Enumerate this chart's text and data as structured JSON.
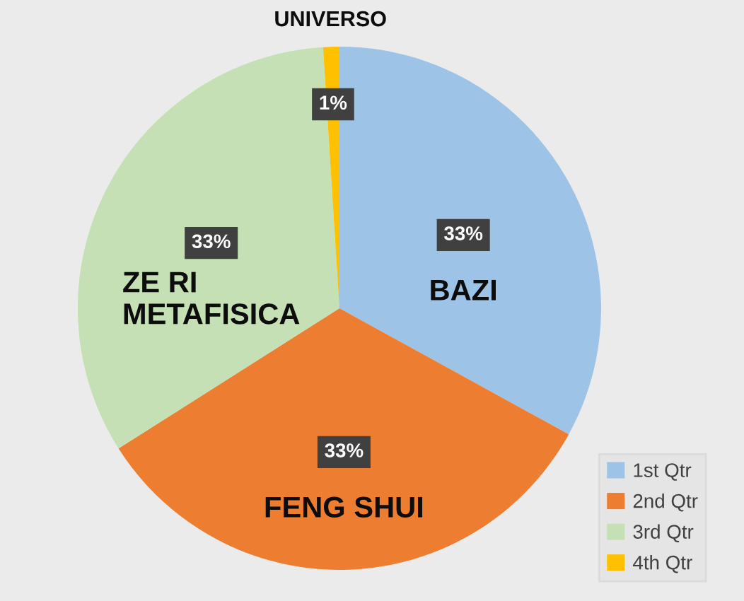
{
  "chart_data": {
    "type": "pie",
    "categories": [
      "1st Qtr",
      "2nd Qtr",
      "3rd Qtr",
      "4th Qtr"
    ],
    "values": [
      33,
      33,
      33,
      1
    ],
    "colors": [
      "#9dc3e6",
      "#ed7d31",
      "#c5e0b4",
      "#ffc000"
    ],
    "value_labels": [
      "33%",
      "33%",
      "33%",
      "1%"
    ],
    "annotations": [
      {
        "text": "BAZI",
        "x": "1st Qtr"
      },
      {
        "text": "FENG SHUI",
        "x": "2nd Qtr"
      },
      {
        "text": "ZE RI\nMETAFISICA",
        "x": "3rd Qtr"
      },
      {
        "text": "UNIVERSO",
        "x": "4th Qtr"
      }
    ],
    "legend": "bottom right"
  }
}
